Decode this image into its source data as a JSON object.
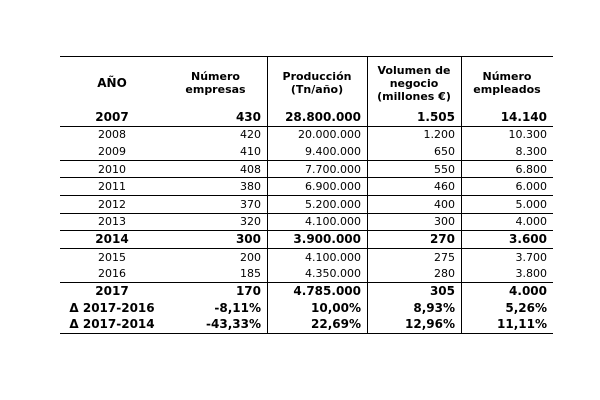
{
  "headers": {
    "year": "AÑO",
    "companies": "Número empresas",
    "production": "Producción (Tn/año)",
    "business_volume": "Volumen de negocio (millones €)",
    "employees": "Número empleados"
  },
  "rows": [
    {
      "year": "2007",
      "companies": "430",
      "production": "28.800.000",
      "volume": "1.505",
      "employees": "14.140",
      "bold": true
    },
    {
      "year": "2008",
      "companies": "420",
      "production": "20.000.000",
      "volume": "1.200",
      "employees": "10.300",
      "bold": false
    },
    {
      "year": "2009",
      "companies": "410",
      "production": "9.400.000",
      "volume": "650",
      "employees": "8.300",
      "bold": false
    },
    {
      "year": "2010",
      "companies": "408",
      "production": "7.700.000",
      "volume": "550",
      "employees": "6.800",
      "bold": false
    },
    {
      "year": "2011",
      "companies": "380",
      "production": "6.900.000",
      "volume": "460",
      "employees": "6.000",
      "bold": false
    },
    {
      "year": "2012",
      "companies": "370",
      "production": "5.200.000",
      "volume": "400",
      "employees": "5.000",
      "bold": false
    },
    {
      "year": "2013",
      "companies": "320",
      "production": "4.100.000",
      "volume": "300",
      "employees": "4.000",
      "bold": false
    },
    {
      "year": "2014",
      "companies": "300",
      "production": "3.900.000",
      "volume": "270",
      "employees": "3.600",
      "bold": true
    },
    {
      "year": "2015",
      "companies": "200",
      "production": "4.100.000",
      "volume": "275",
      "employees": "3.700",
      "bold": false
    },
    {
      "year": "2016",
      "companies": "185",
      "production": "4.350.000",
      "volume": "280",
      "employees": "3.800",
      "bold": false
    },
    {
      "year": "2017",
      "companies": "170",
      "production": "4.785.000",
      "volume": "305",
      "employees": "4.000",
      "bold": true
    },
    {
      "year": "Δ 2017-2016",
      "companies": "-8,11%",
      "production": "10,00%",
      "volume": "8,93%",
      "employees": "5,26%",
      "bold": true
    },
    {
      "year": "Δ 2017-2014",
      "companies": "-43,33%",
      "production": "22,69%",
      "volume": "12,96%",
      "employees": "11,11%",
      "bold": true
    }
  ]
}
